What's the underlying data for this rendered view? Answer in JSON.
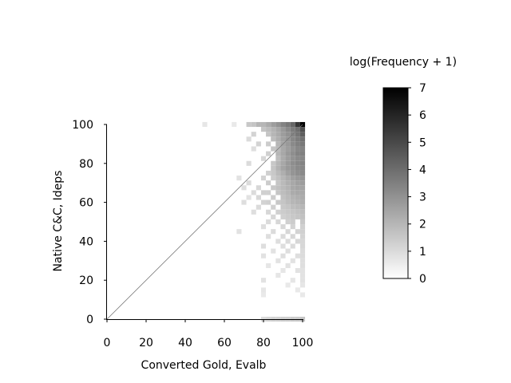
{
  "chart_data": {
    "type": "heatmap",
    "title": "",
    "xlabel": "Converted Gold, Evalb",
    "ylabel": "Native C&C, Ideps",
    "xlim": [
      0,
      100
    ],
    "ylim": [
      0,
      100
    ],
    "xticks": [
      "0",
      "20",
      "40",
      "60",
      "80",
      "100"
    ],
    "yticks": [
      "0",
      "20",
      "40",
      "60",
      "80",
      "100"
    ],
    "bin_size": 2.5,
    "diagonal_line": true,
    "colorbar": {
      "title": "log(Frequency + 1)",
      "range": [
        0,
        7
      ],
      "ticks": [
        "0",
        "1",
        "2",
        "3",
        "4",
        "5",
        "6",
        "7"
      ],
      "color_low": "#ffffff",
      "color_high": "#000000"
    },
    "cells_note_units": "[x, y, log_frequency_plus_1]",
    "cells": [
      [
        50,
        100,
        0.7
      ],
      [
        65,
        100,
        0.6
      ],
      [
        72.5,
        100,
        1.5
      ],
      [
        75,
        100,
        1.6
      ],
      [
        77.5,
        100,
        2.0
      ],
      [
        80,
        100,
        2.0
      ],
      [
        82.5,
        100,
        2.3
      ],
      [
        85,
        100,
        2.7
      ],
      [
        87.5,
        100,
        3.0
      ],
      [
        90,
        100,
        3.4
      ],
      [
        92.5,
        100,
        3.7
      ],
      [
        95,
        100,
        4.2
      ],
      [
        97.5,
        100,
        5.5
      ],
      [
        100,
        100,
        7.0
      ],
      [
        80,
        97.5,
        1.6
      ],
      [
        82.5,
        97.5,
        1.8
      ],
      [
        85,
        97.5,
        2.1
      ],
      [
        87.5,
        97.5,
        2.4
      ],
      [
        90,
        97.5,
        2.8
      ],
      [
        92.5,
        97.5,
        3.2
      ],
      [
        95,
        97.5,
        3.6
      ],
      [
        97.5,
        97.5,
        4.0
      ],
      [
        100,
        97.5,
        4.8
      ],
      [
        75,
        95,
        1.2
      ],
      [
        82.5,
        95,
        1.6
      ],
      [
        85,
        95,
        2.0
      ],
      [
        87.5,
        95,
        2.3
      ],
      [
        90,
        95,
        2.7
      ],
      [
        92.5,
        95,
        3.0
      ],
      [
        95,
        95,
        3.4
      ],
      [
        97.5,
        95,
        3.8
      ],
      [
        100,
        95,
        4.4
      ],
      [
        72.5,
        92.5,
        1.0
      ],
      [
        85,
        92.5,
        1.8
      ],
      [
        87.5,
        92.5,
        2.2
      ],
      [
        90,
        92.5,
        2.6
      ],
      [
        92.5,
        92.5,
        2.9
      ],
      [
        95,
        92.5,
        3.3
      ],
      [
        97.5,
        92.5,
        3.6
      ],
      [
        100,
        92.5,
        3.9
      ],
      [
        77.5,
        90,
        1.2
      ],
      [
        82.5,
        90,
        1.4
      ],
      [
        87.5,
        90,
        2.0
      ],
      [
        90,
        90,
        2.5
      ],
      [
        92.5,
        90,
        2.8
      ],
      [
        95,
        90,
        3.2
      ],
      [
        97.5,
        90,
        3.5
      ],
      [
        100,
        90,
        3.7
      ],
      [
        75,
        87.5,
        0.9
      ],
      [
        85,
        87.5,
        1.6
      ],
      [
        87.5,
        87.5,
        1.9
      ],
      [
        90,
        87.5,
        2.4
      ],
      [
        92.5,
        87.5,
        2.7
      ],
      [
        95,
        87.5,
        3.0
      ],
      [
        97.5,
        87.5,
        3.3
      ],
      [
        100,
        87.5,
        3.4
      ],
      [
        82.5,
        85,
        1.3
      ],
      [
        87.5,
        85,
        2.0
      ],
      [
        90,
        85,
        2.4
      ],
      [
        92.5,
        85,
        2.8
      ],
      [
        95,
        85,
        3.1
      ],
      [
        97.5,
        85,
        3.4
      ],
      [
        100,
        85,
        3.5
      ],
      [
        80,
        82.5,
        1.1
      ],
      [
        87.5,
        82.5,
        1.8
      ],
      [
        90,
        82.5,
        2.3
      ],
      [
        92.5,
        82.5,
        2.7
      ],
      [
        95,
        82.5,
        3.0
      ],
      [
        97.5,
        82.5,
        3.2
      ],
      [
        100,
        82.5,
        3.3
      ],
      [
        72.5,
        80,
        1.0
      ],
      [
        85,
        80,
        1.5
      ],
      [
        87.5,
        80,
        2.0
      ],
      [
        90,
        80,
        2.4
      ],
      [
        92.5,
        80,
        2.8
      ],
      [
        95,
        80,
        3.1
      ],
      [
        97.5,
        80,
        3.3
      ],
      [
        100,
        80,
        3.4
      ],
      [
        85,
        77.5,
        1.6
      ],
      [
        87.5,
        77.5,
        2.1
      ],
      [
        90,
        77.5,
        2.5
      ],
      [
        92.5,
        77.5,
        2.8
      ],
      [
        95,
        77.5,
        3.0
      ],
      [
        97.5,
        77.5,
        3.2
      ],
      [
        100,
        77.5,
        3.3
      ],
      [
        82.5,
        75,
        1.3
      ],
      [
        85,
        75,
        1.5
      ],
      [
        87.5,
        75,
        1.9
      ],
      [
        90,
        75,
        2.2
      ],
      [
        92.5,
        75,
        2.6
      ],
      [
        95,
        75,
        2.9
      ],
      [
        97.5,
        75,
        3.1
      ],
      [
        100,
        75,
        3.2
      ],
      [
        67.5,
        72.5,
        0.8
      ],
      [
        80,
        72.5,
        1.2
      ],
      [
        85,
        72.5,
        1.4
      ],
      [
        87.5,
        72.5,
        1.7
      ],
      [
        90,
        72.5,
        2.0
      ],
      [
        92.5,
        72.5,
        2.3
      ],
      [
        95,
        72.5,
        2.6
      ],
      [
        97.5,
        72.5,
        2.8
      ],
      [
        100,
        72.5,
        2.9
      ],
      [
        72.5,
        70,
        1.0
      ],
      [
        82.5,
        70,
        1.4
      ],
      [
        87.5,
        70,
        1.6
      ],
      [
        90,
        70,
        1.9
      ],
      [
        92.5,
        70,
        2.2
      ],
      [
        95,
        70,
        2.4
      ],
      [
        97.5,
        70,
        2.6
      ],
      [
        100,
        70,
        2.7
      ],
      [
        70,
        67.5,
        0.9
      ],
      [
        77.5,
        67.5,
        1.1
      ],
      [
        85,
        67.5,
        1.5
      ],
      [
        87.5,
        67.5,
        1.7
      ],
      [
        90,
        67.5,
        1.9
      ],
      [
        92.5,
        67.5,
        2.1
      ],
      [
        95,
        67.5,
        2.4
      ],
      [
        97.5,
        67.5,
        2.5
      ],
      [
        100,
        67.5,
        2.5
      ],
      [
        75,
        65,
        1.0
      ],
      [
        80,
        65,
        1.3
      ],
      [
        82.5,
        65,
        1.3
      ],
      [
        87.5,
        65,
        1.6
      ],
      [
        90,
        65,
        1.8
      ],
      [
        92.5,
        65,
        2.0
      ],
      [
        95,
        65,
        2.3
      ],
      [
        97.5,
        65,
        2.4
      ],
      [
        100,
        65,
        2.4
      ],
      [
        72.5,
        62.5,
        0.8
      ],
      [
        77.5,
        62.5,
        1.1
      ],
      [
        85,
        62.5,
        1.4
      ],
      [
        90,
        62.5,
        1.7
      ],
      [
        92.5,
        62.5,
        1.9
      ],
      [
        95,
        62.5,
        2.1
      ],
      [
        97.5,
        62.5,
        2.2
      ],
      [
        100,
        62.5,
        2.3
      ],
      [
        70,
        60,
        0.9
      ],
      [
        80,
        60,
        1.2
      ],
      [
        82.5,
        60,
        1.3
      ],
      [
        87.5,
        60,
        1.5
      ],
      [
        90,
        60,
        1.6
      ],
      [
        92.5,
        60,
        1.8
      ],
      [
        95,
        60,
        2.0
      ],
      [
        97.5,
        60,
        2.1
      ],
      [
        100,
        60,
        2.2
      ],
      [
        77.5,
        57.5,
        1.0
      ],
      [
        85,
        57.5,
        1.3
      ],
      [
        90,
        57.5,
        1.5
      ],
      [
        92.5,
        57.5,
        1.6
      ],
      [
        95,
        57.5,
        1.8
      ],
      [
        97.5,
        57.5,
        1.9
      ],
      [
        100,
        57.5,
        2.0
      ],
      [
        75,
        55,
        0.9
      ],
      [
        82.5,
        55,
        1.1
      ],
      [
        87.5,
        55,
        1.3
      ],
      [
        90,
        55,
        1.4
      ],
      [
        92.5,
        55,
        1.5
      ],
      [
        95,
        55,
        1.6
      ],
      [
        97.5,
        55,
        1.7
      ],
      [
        100,
        55,
        1.8
      ],
      [
        85,
        52.5,
        1.1
      ],
      [
        90,
        52.5,
        1.3
      ],
      [
        92.5,
        52.5,
        1.4
      ],
      [
        95,
        52.5,
        1.5
      ],
      [
        97.5,
        52.5,
        1.6
      ],
      [
        100,
        52.5,
        1.7
      ],
      [
        82.5,
        50,
        1.0
      ],
      [
        87.5,
        50,
        1.1
      ],
      [
        92.5,
        50,
        1.3
      ],
      [
        95,
        50,
        1.4
      ],
      [
        100,
        50,
        1.5
      ],
      [
        80,
        47.5,
        0.9
      ],
      [
        90,
        47.5,
        1.1
      ],
      [
        95,
        47.5,
        1.2
      ],
      [
        100,
        47.5,
        1.3
      ],
      [
        67.5,
        45,
        0.8
      ],
      [
        85,
        45,
        1.0
      ],
      [
        92.5,
        45,
        1.1
      ],
      [
        97.5,
        45,
        1.2
      ],
      [
        100,
        45,
        1.3
      ],
      [
        82.5,
        42.5,
        0.9
      ],
      [
        90,
        42.5,
        1.0
      ],
      [
        95,
        42.5,
        1.1
      ],
      [
        100,
        42.5,
        1.2
      ],
      [
        87.5,
        40,
        0.9
      ],
      [
        92.5,
        40,
        1.0
      ],
      [
        97.5,
        40,
        1.1
      ],
      [
        100,
        40,
        1.1
      ],
      [
        80,
        37.5,
        0.9
      ],
      [
        90,
        37.5,
        0.9
      ],
      [
        95,
        37.5,
        1.0
      ],
      [
        100,
        37.5,
        1.1
      ],
      [
        85,
        35,
        0.8
      ],
      [
        92.5,
        35,
        0.9
      ],
      [
        100,
        35,
        1.0
      ],
      [
        80,
        32.5,
        0.8
      ],
      [
        90,
        32.5,
        0.9
      ],
      [
        97.5,
        32.5,
        0.9
      ],
      [
        100,
        32.5,
        1.0
      ],
      [
        87.5,
        30,
        0.8
      ],
      [
        95,
        30,
        0.8
      ],
      [
        100,
        30,
        0.9
      ],
      [
        82.5,
        27.5,
        0.7
      ],
      [
        92.5,
        27.5,
        0.8
      ],
      [
        100,
        27.5,
        0.9
      ],
      [
        90,
        25,
        0.7
      ],
      [
        97.5,
        25,
        0.8
      ],
      [
        100,
        25,
        0.8
      ],
      [
        87.5,
        22.5,
        0.7
      ],
      [
        100,
        22.5,
        0.8
      ],
      [
        80,
        20,
        0.8
      ],
      [
        95,
        20,
        0.7
      ],
      [
        100,
        20,
        0.8
      ],
      [
        92.5,
        17.5,
        0.6
      ],
      [
        100,
        17.5,
        0.7
      ],
      [
        80,
        15,
        0.7
      ],
      [
        97.5,
        15,
        0.6
      ],
      [
        80,
        12.5,
        0.6
      ],
      [
        100,
        12.5,
        0.6
      ],
      [
        80,
        0,
        1.0
      ],
      [
        82.5,
        0,
        1.1
      ],
      [
        85,
        0,
        1.2
      ],
      [
        87.5,
        0,
        1.2
      ],
      [
        90,
        0,
        1.3
      ],
      [
        92.5,
        0,
        1.3
      ],
      [
        95,
        0,
        1.4
      ],
      [
        97.5,
        0,
        1.4
      ],
      [
        100,
        0,
        1.6
      ]
    ]
  }
}
